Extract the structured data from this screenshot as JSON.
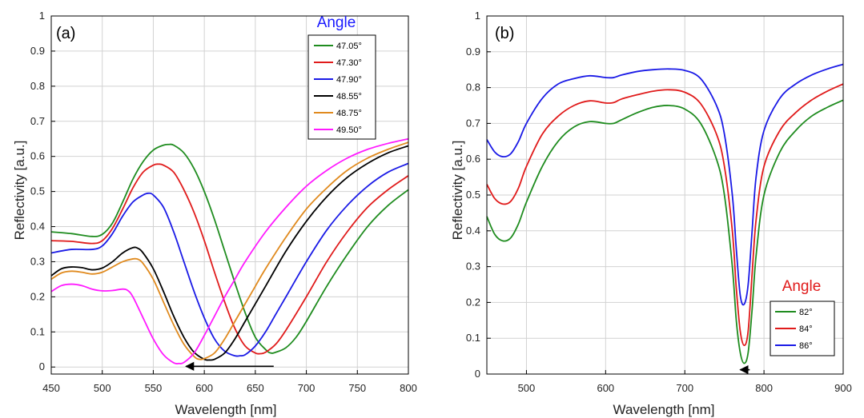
{
  "chart_data": [
    {
      "type": "line",
      "panel_label": "(a)",
      "xlabel": "Wavelength [nm]",
      "ylabel": "Reflectivity [a.u.]",
      "xlim": [
        450,
        800
      ],
      "ylim": [
        -0.02,
        1.0
      ],
      "xticks": [
        450,
        500,
        550,
        600,
        650,
        700,
        750,
        800
      ],
      "yticks": [
        0,
        0.1,
        0.2,
        0.3,
        0.4,
        0.5,
        0.6,
        0.7,
        0.8,
        0.9,
        1
      ],
      "ytick_labels": [
        "0",
        "0.1",
        "0.2",
        "0.3",
        "0.4",
        "0.5",
        "0.6",
        "0.7",
        "0.8",
        "0.9",
        "1"
      ],
      "grid": true,
      "legend": {
        "title": "Angle",
        "title_color": "#1a1aff",
        "placement": "top-right"
      },
      "annotation": {
        "type": "arrow",
        "from": [
          668,
          0.002
        ],
        "to": [
          582,
          0.002
        ]
      },
      "series": [
        {
          "name": "47.05°",
          "color": "#1f8c1f",
          "x": [
            450,
            470,
            490,
            500,
            510,
            520,
            530,
            540,
            550,
            560,
            565,
            570,
            580,
            590,
            600,
            610,
            620,
            630,
            640,
            650,
            660,
            665,
            670,
            680,
            690,
            700,
            720,
            740,
            760,
            780,
            800
          ],
          "y": [
            0.385,
            0.38,
            0.372,
            0.378,
            0.41,
            0.47,
            0.535,
            0.585,
            0.618,
            0.632,
            0.634,
            0.632,
            0.61,
            0.565,
            0.5,
            0.42,
            0.33,
            0.24,
            0.155,
            0.085,
            0.05,
            0.04,
            0.042,
            0.055,
            0.085,
            0.13,
            0.23,
            0.32,
            0.4,
            0.46,
            0.505
          ]
        },
        {
          "name": "47.30°",
          "color": "#e01b1b",
          "x": [
            450,
            470,
            490,
            500,
            510,
            520,
            530,
            540,
            550,
            555,
            560,
            570,
            580,
            590,
            600,
            610,
            620,
            630,
            640,
            650,
            655,
            660,
            670,
            680,
            700,
            720,
            740,
            760,
            780,
            800
          ],
          "y": [
            0.36,
            0.358,
            0.352,
            0.36,
            0.395,
            0.45,
            0.51,
            0.555,
            0.575,
            0.578,
            0.575,
            0.555,
            0.505,
            0.44,
            0.36,
            0.27,
            0.185,
            0.11,
            0.06,
            0.04,
            0.038,
            0.042,
            0.065,
            0.105,
            0.2,
            0.3,
            0.385,
            0.455,
            0.505,
            0.545
          ]
        },
        {
          "name": "47.90°",
          "color": "#1a1ae6",
          "x": [
            450,
            470,
            490,
            500,
            510,
            520,
            530,
            540,
            545,
            550,
            560,
            570,
            580,
            590,
            600,
            610,
            620,
            630,
            635,
            640,
            650,
            660,
            670,
            680,
            700,
            720,
            740,
            760,
            780,
            800
          ],
          "y": [
            0.325,
            0.335,
            0.335,
            0.345,
            0.38,
            0.43,
            0.47,
            0.49,
            0.495,
            0.49,
            0.455,
            0.385,
            0.3,
            0.215,
            0.14,
            0.08,
            0.045,
            0.032,
            0.032,
            0.035,
            0.06,
            0.1,
            0.15,
            0.2,
            0.3,
            0.39,
            0.46,
            0.515,
            0.555,
            0.58
          ]
        },
        {
          "name": "48.55°",
          "color": "#000000",
          "x": [
            450,
            460,
            470,
            480,
            490,
            500,
            510,
            520,
            530,
            535,
            540,
            550,
            560,
            570,
            580,
            590,
            600,
            605,
            610,
            620,
            630,
            640,
            650,
            660,
            680,
            700,
            720,
            740,
            760,
            780,
            800
          ],
          "y": [
            0.26,
            0.28,
            0.285,
            0.283,
            0.277,
            0.282,
            0.3,
            0.325,
            0.34,
            0.338,
            0.325,
            0.28,
            0.215,
            0.145,
            0.085,
            0.042,
            0.022,
            0.02,
            0.022,
            0.04,
            0.08,
            0.13,
            0.18,
            0.23,
            0.33,
            0.415,
            0.485,
            0.54,
            0.58,
            0.61,
            0.63
          ]
        },
        {
          "name": "48.75°",
          "color": "#e08a1e",
          "x": [
            450,
            460,
            470,
            480,
            490,
            500,
            510,
            520,
            530,
            535,
            540,
            550,
            560,
            570,
            580,
            590,
            595,
            600,
            610,
            620,
            630,
            640,
            650,
            660,
            680,
            700,
            720,
            740,
            760,
            780,
            800
          ],
          "y": [
            0.25,
            0.268,
            0.273,
            0.27,
            0.265,
            0.27,
            0.285,
            0.3,
            0.308,
            0.307,
            0.295,
            0.25,
            0.185,
            0.12,
            0.065,
            0.03,
            0.022,
            0.024,
            0.04,
            0.08,
            0.13,
            0.18,
            0.23,
            0.28,
            0.37,
            0.45,
            0.51,
            0.56,
            0.595,
            0.62,
            0.64
          ]
        },
        {
          "name": "49.50°",
          "color": "#ff1aff",
          "x": [
            450,
            460,
            470,
            480,
            490,
            500,
            510,
            520,
            525,
            530,
            540,
            550,
            560,
            570,
            575,
            580,
            590,
            600,
            610,
            620,
            630,
            640,
            660,
            680,
            700,
            720,
            740,
            760,
            780,
            800
          ],
          "y": [
            0.215,
            0.232,
            0.236,
            0.232,
            0.222,
            0.217,
            0.218,
            0.222,
            0.218,
            0.2,
            0.14,
            0.08,
            0.035,
            0.012,
            0.01,
            0.013,
            0.04,
            0.09,
            0.145,
            0.2,
            0.25,
            0.3,
            0.385,
            0.455,
            0.515,
            0.56,
            0.595,
            0.62,
            0.637,
            0.65
          ]
        }
      ]
    },
    {
      "type": "line",
      "panel_label": "(b)",
      "xlabel": "Wavelength [nm]",
      "ylabel": "Reflectivity [a.u.]",
      "xlim": [
        450,
        900
      ],
      "ylim": [
        0,
        1.0
      ],
      "xticks": [
        500,
        600,
        700,
        800,
        900
      ],
      "yticks": [
        0,
        0.1,
        0.2,
        0.3,
        0.4,
        0.5,
        0.6,
        0.7,
        0.8,
        0.9,
        1
      ],
      "ytick_labels": [
        "0",
        "0.1",
        "0.2",
        "0.3",
        "0.4",
        "0.5",
        "0.6",
        "0.7",
        "0.8",
        "0.9",
        "1"
      ],
      "grid": true,
      "legend": {
        "title": "Angle",
        "title_color": "#e01b1b",
        "placement": "bottom-right"
      },
      "annotation": {
        "type": "arrow",
        "from": [
          782,
          0.012
        ],
        "to": [
          770,
          0.012
        ]
      },
      "series": [
        {
          "name": "82°",
          "color": "#1f8c1f",
          "x": [
            450,
            460,
            470,
            480,
            490,
            500,
            520,
            540,
            560,
            580,
            600,
            610,
            620,
            640,
            660,
            680,
            700,
            720,
            740,
            750,
            760,
            765,
            770,
            775,
            780,
            785,
            790,
            800,
            820,
            840,
            860,
            880,
            900
          ],
          "y": [
            0.44,
            0.39,
            0.372,
            0.38,
            0.42,
            0.48,
            0.58,
            0.65,
            0.69,
            0.705,
            0.7,
            0.7,
            0.71,
            0.73,
            0.745,
            0.75,
            0.74,
            0.7,
            0.6,
            0.5,
            0.3,
            0.15,
            0.06,
            0.03,
            0.06,
            0.18,
            0.33,
            0.5,
            0.62,
            0.68,
            0.72,
            0.745,
            0.765
          ]
        },
        {
          "name": "84°",
          "color": "#e01b1b",
          "x": [
            450,
            460,
            470,
            480,
            490,
            500,
            520,
            540,
            560,
            580,
            600,
            610,
            620,
            640,
            660,
            680,
            700,
            720,
            740,
            750,
            760,
            765,
            770,
            775,
            780,
            785,
            790,
            800,
            820,
            840,
            860,
            880,
            900
          ],
          "y": [
            0.53,
            0.49,
            0.475,
            0.482,
            0.52,
            0.58,
            0.67,
            0.72,
            0.75,
            0.763,
            0.757,
            0.758,
            0.768,
            0.78,
            0.79,
            0.794,
            0.787,
            0.755,
            0.67,
            0.58,
            0.4,
            0.24,
            0.12,
            0.08,
            0.12,
            0.28,
            0.43,
            0.58,
            0.68,
            0.73,
            0.765,
            0.79,
            0.81
          ]
        },
        {
          "name": "86°",
          "color": "#1a1ae6",
          "x": [
            450,
            460,
            470,
            480,
            490,
            500,
            520,
            540,
            560,
            580,
            600,
            610,
            620,
            640,
            660,
            680,
            700,
            720,
            740,
            750,
            760,
            765,
            770,
            775,
            780,
            785,
            790,
            800,
            820,
            840,
            860,
            880,
            900
          ],
          "y": [
            0.655,
            0.62,
            0.607,
            0.615,
            0.65,
            0.7,
            0.77,
            0.81,
            0.825,
            0.833,
            0.828,
            0.828,
            0.835,
            0.845,
            0.85,
            0.852,
            0.848,
            0.825,
            0.75,
            0.67,
            0.5,
            0.35,
            0.22,
            0.195,
            0.25,
            0.4,
            0.55,
            0.68,
            0.77,
            0.81,
            0.835,
            0.852,
            0.865
          ]
        }
      ]
    }
  ]
}
